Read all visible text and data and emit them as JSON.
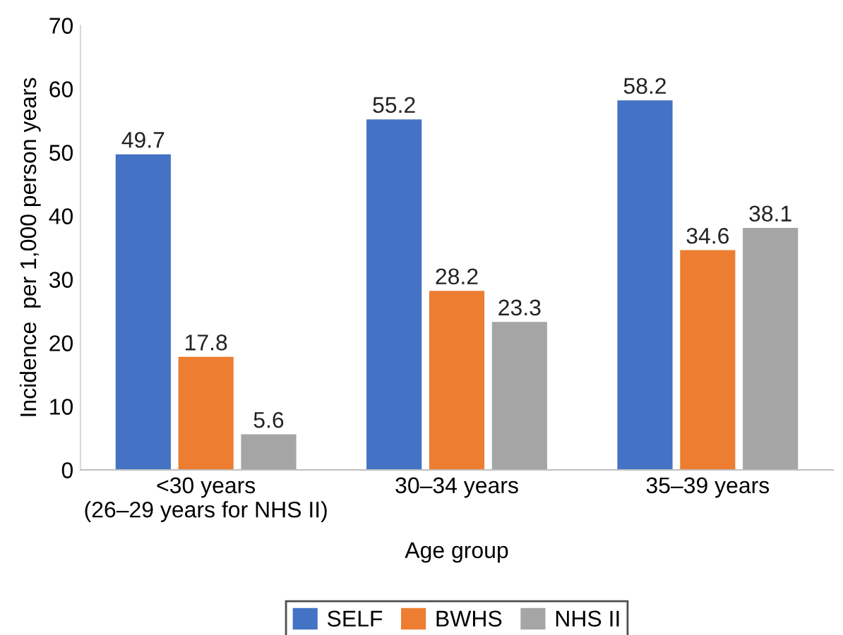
{
  "chart_data": {
    "type": "bar",
    "xlabel": "Age group",
    "ylabel": "Incidence  per 1,000 person years",
    "categories": [
      "<30 years\n(26–29 years for NHS II)",
      "30–34 years",
      "35–39 years"
    ],
    "series": [
      {
        "name": "SELF",
        "color": "#4472c4",
        "values": [
          49.7,
          55.2,
          58.2
        ]
      },
      {
        "name": "BWHS",
        "color": "#ed7d31",
        "values": [
          17.8,
          28.2,
          34.6
        ]
      },
      {
        "name": "NHS II",
        "color": "#a5a5a5",
        "values": [
          5.6,
          23.3,
          38.1
        ]
      }
    ],
    "ylim": [
      0,
      70
    ],
    "yticks": [
      0,
      10,
      20,
      30,
      40,
      50,
      60,
      70
    ],
    "grid": false,
    "legend": "bottom",
    "data_labels": true
  }
}
